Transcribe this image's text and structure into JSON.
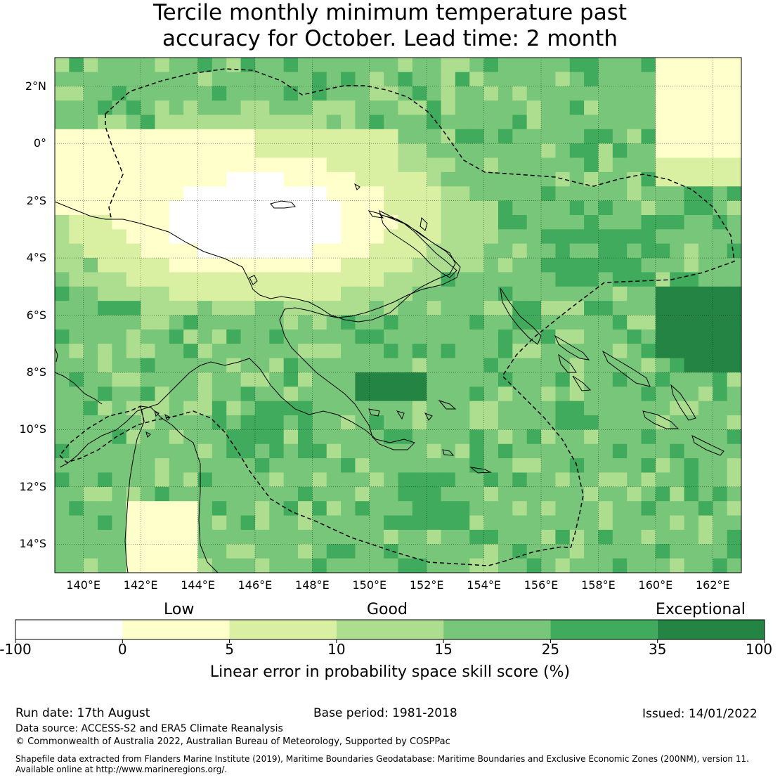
{
  "title_line1": "Tercile monthly minimum temperature past",
  "title_line2": "accuracy for October. Lead time: 2 month",
  "map": {
    "lat_labels": [
      "2°N",
      "0°",
      "2°S",
      "4°S",
      "6°S",
      "8°S",
      "10°S",
      "12°S",
      "14°S"
    ],
    "lat_values": [
      2,
      0,
      -2,
      -4,
      -6,
      -8,
      -10,
      -12,
      -14
    ],
    "lon_labels": [
      "140°E",
      "142°E",
      "144°E",
      "146°E",
      "148°E",
      "150°E",
      "152°E",
      "154°E",
      "156°E",
      "158°E",
      "160°E",
      "162°E"
    ],
    "lon_values": [
      140,
      142,
      144,
      146,
      148,
      150,
      152,
      154,
      156,
      158,
      160,
      162
    ],
    "lon_range": [
      139,
      163
    ],
    "lat_range": [
      -15,
      3
    ],
    "coastline_color": "#000000",
    "boundary_style": "dashed"
  },
  "colorbar": {
    "category_labels": [
      "Low",
      "Good",
      "Exceptional"
    ],
    "tick_labels": [
      "-100",
      "0",
      "5",
      "10",
      "15",
      "25",
      "35",
      "100"
    ],
    "bins": [
      {
        "from": -100,
        "to": 0,
        "color": "#ffffff"
      },
      {
        "from": 0,
        "to": 5,
        "color": "#ffffcc"
      },
      {
        "from": 5,
        "to": 10,
        "color": "#d9f0a3"
      },
      {
        "from": 10,
        "to": 15,
        "color": "#addd8e"
      },
      {
        "from": 15,
        "to": 25,
        "color": "#78c679"
      },
      {
        "from": 25,
        "to": 35,
        "color": "#41ab5d"
      },
      {
        "from": 35,
        "to": 100,
        "color": "#238443"
      }
    ],
    "label": "Linear error in probability space skill score (%)"
  },
  "footer": {
    "run_date": "Run date: 17th August",
    "base_period": "Base period: 1981-2018",
    "issued": "Issued: 14/01/2022",
    "data_source": "Data source: ACCESS-S2 and ERA5 Climate Reanalysis",
    "copyright": "© Commonwealth of Australia 2022, Australian Bureau of Meteorology, Supported by COSPPac",
    "shapefile_line1": "Shapefile data extracted from Flanders Marine Institute (2019), Maritime Boundaries Geodatabase: Maritime Boundaries and Exclusive Economic Zones (200NM), version 11.",
    "shapefile_line2": "Available online at http://www.marineregions.org/."
  }
}
